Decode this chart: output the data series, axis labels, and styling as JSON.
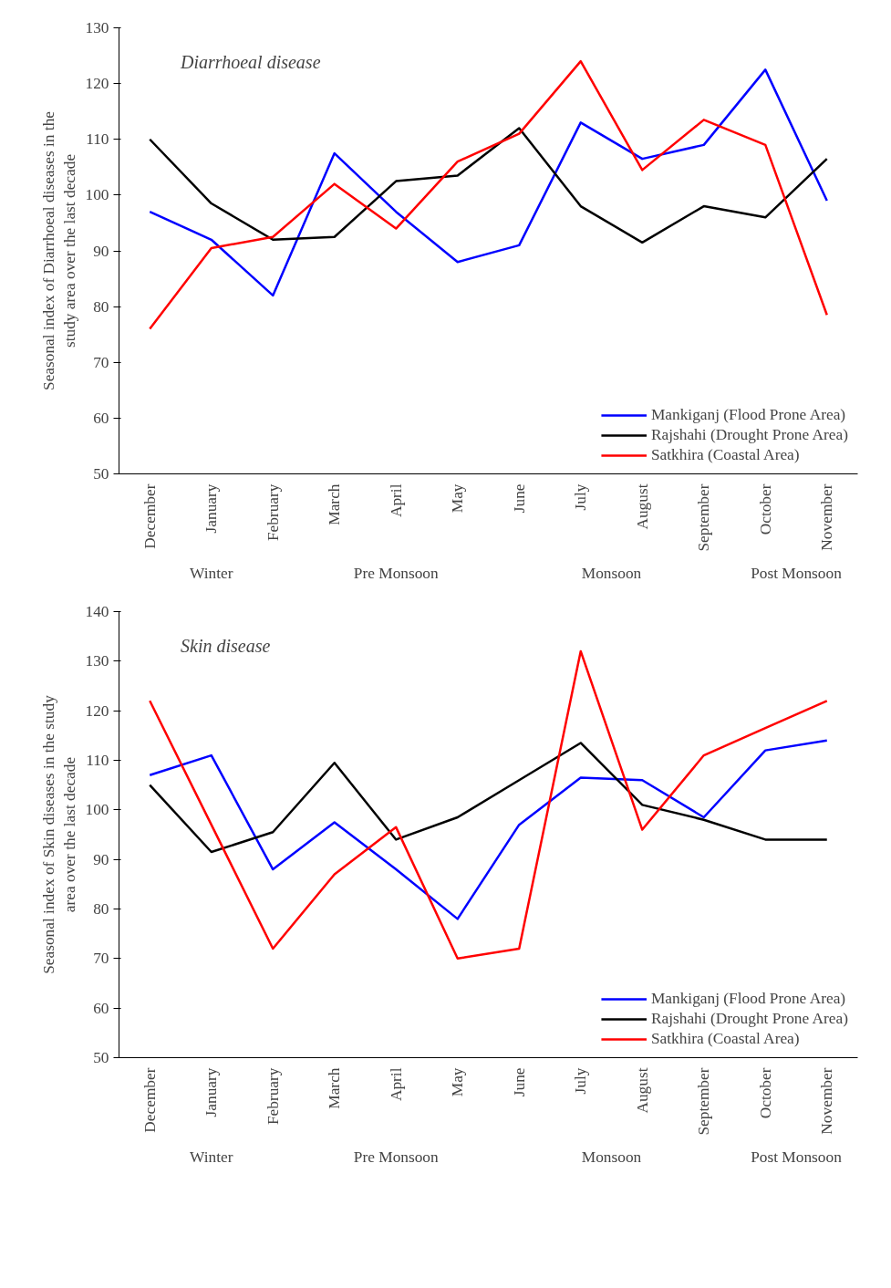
{
  "chart_data": [
    {
      "type": "line",
      "title": "Diarrhoeal disease",
      "ylabel": "Seasonal index of Diarrhoeal diseases in the study area over the last decade",
      "categories": [
        "December",
        "January",
        "February",
        "March",
        "April",
        "May",
        "June",
        "July",
        "August",
        "September",
        "October",
        "November"
      ],
      "ylim": [
        50,
        130
      ],
      "yticks": [
        50,
        60,
        70,
        80,
        90,
        100,
        110,
        120,
        130
      ],
      "grid": false,
      "legend": "bottom right",
      "marker": "none",
      "line_style": "solid",
      "series": [
        {
          "name": "Mankiganj (Flood Prone Area)",
          "color": "#0000ff",
          "values": [
            97,
            92,
            82,
            107.5,
            97,
            88,
            91,
            113,
            106.5,
            109,
            122.5,
            99
          ]
        },
        {
          "name": "Rajshahi (Drought Prone Area)",
          "color": "#000000",
          "values": [
            110,
            98.5,
            92,
            92.5,
            102.5,
            103.5,
            112,
            98,
            91.5,
            98,
            96,
            106.5
          ]
        },
        {
          "name": "Satkhira (Coastal Area)",
          "color": "#ff0000",
          "values": [
            76,
            90.5,
            92.5,
            102,
            94,
            106,
            111,
            124,
            104.5,
            113.5,
            109,
            78.5
          ]
        }
      ],
      "annotations": [
        "Winter",
        "Pre Monsoon",
        "Monsoon",
        "Post Monsoon"
      ]
    },
    {
      "type": "line",
      "title": "Skin disease",
      "ylabel": "Seasonal index of Skin diseases in the study area over the last decade",
      "categories": [
        "December",
        "January",
        "February",
        "March",
        "April",
        "May",
        "June",
        "July",
        "August",
        "September",
        "October",
        "November"
      ],
      "ylim": [
        50,
        140
      ],
      "yticks": [
        50,
        60,
        70,
        80,
        90,
        100,
        110,
        120,
        130,
        140
      ],
      "grid": false,
      "legend": "bottom right",
      "marker": "none",
      "line_style": "solid",
      "series": [
        {
          "name": "Mankiganj (Flood Prone Area)",
          "color": "#0000ff",
          "values": [
            107,
            111,
            88,
            97.5,
            88,
            78,
            97,
            106.5,
            106,
            98.5,
            112,
            114
          ]
        },
        {
          "name": "Rajshahi (Drought Prone Area)",
          "color": "#000000",
          "values": [
            105,
            91.5,
            95.5,
            109.5,
            94,
            98.5,
            106,
            113.5,
            101,
            98,
            94,
            94
          ]
        },
        {
          "name": "Satkhira (Coastal Area)",
          "color": "#ff0000",
          "values": [
            122,
            97,
            72,
            87,
            96.5,
            70,
            72,
            132,
            96,
            111,
            116.5,
            122
          ]
        }
      ],
      "annotations": [
        "Winter",
        "Pre Monsoon",
        "Monsoon",
        "Post Monsoon"
      ]
    }
  ]
}
